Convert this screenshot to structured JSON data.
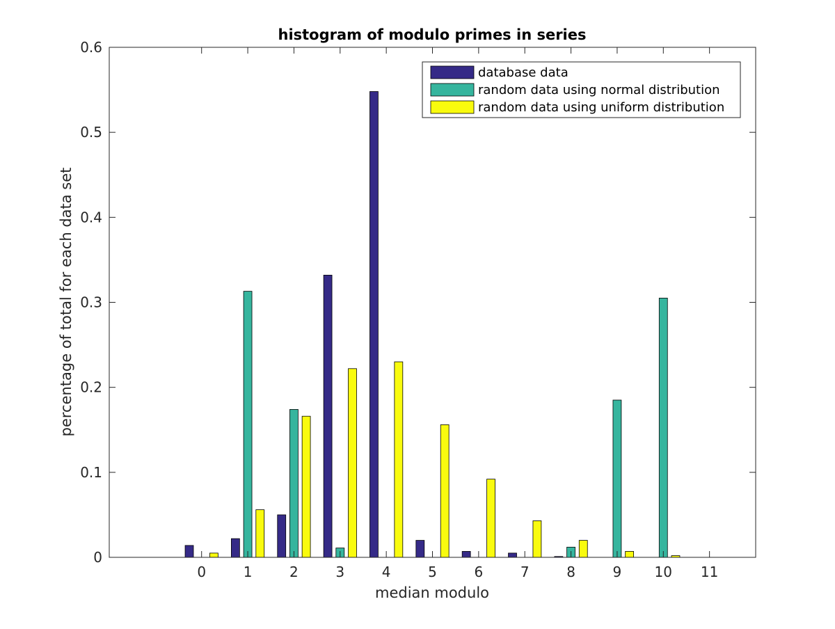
{
  "chart_data": {
    "type": "bar",
    "title": "histogram of modulo primes in series",
    "xlabel": "median modulo",
    "ylabel": "percentage of total for each data set",
    "categories": [
      "0",
      "1",
      "2",
      "3",
      "4",
      "5",
      "6",
      "7",
      "8",
      "9",
      "10",
      "11"
    ],
    "x_ticks": [
      "0",
      "1",
      "2",
      "3",
      "4",
      "5",
      "6",
      "7",
      "8",
      "9",
      "10",
      "11"
    ],
    "xlim": [
      -2,
      12
    ],
    "ylim": [
      0,
      0.6
    ],
    "y_ticks": [
      "0",
      "0.1",
      "0.2",
      "0.3",
      "0.4",
      "0.5",
      "0.6"
    ],
    "grid": false,
    "legend_position": "top-right",
    "series": [
      {
        "name": "database data",
        "color": "#352a87",
        "values": [
          0.014,
          0.022,
          0.05,
          0.332,
          0.548,
          0.02,
          0.007,
          0.005,
          0.001,
          0.0,
          0.0,
          0.0
        ]
      },
      {
        "name": "random data using normal distribution",
        "color": "#36b59e",
        "values": [
          0.0,
          0.313,
          0.174,
          0.011,
          0.0,
          0.0,
          0.0,
          0.0,
          0.012,
          0.185,
          0.305,
          0.0
        ]
      },
      {
        "name": "random data using uniform distribution",
        "color": "#f9fb0e",
        "values": [
          0.005,
          0.056,
          0.166,
          0.222,
          0.23,
          0.156,
          0.092,
          0.043,
          0.02,
          0.007,
          0.002,
          0.0
        ]
      }
    ]
  }
}
